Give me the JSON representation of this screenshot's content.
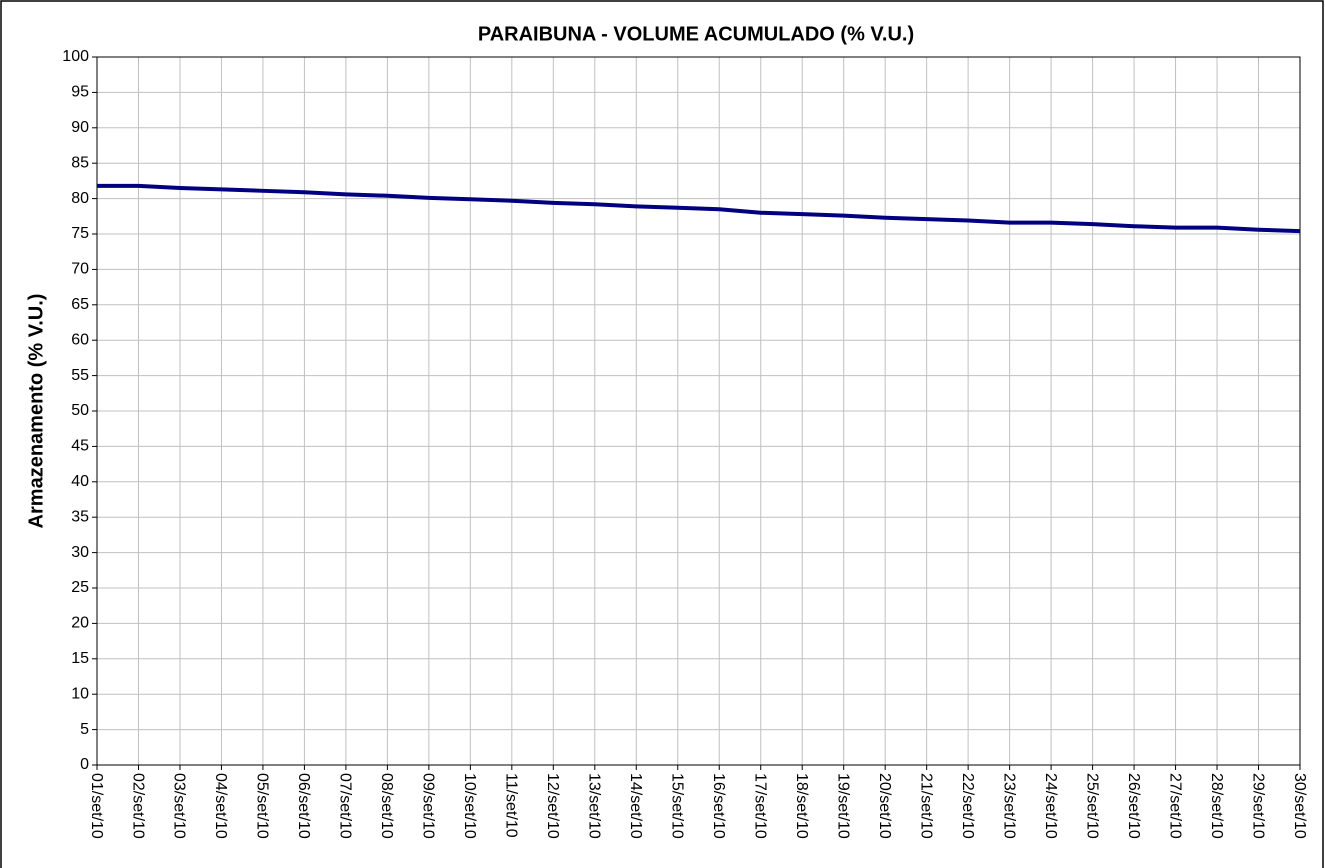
{
  "chart_data": {
    "type": "line",
    "title": "PARAIBUNA - VOLUME ACUMULADO (% V.U.)",
    "ylabel": "Armazenamento (% V.U.)",
    "categories": [
      "01/set/10",
      "02/set/10",
      "03/set/10",
      "04/set/10",
      "05/set/10",
      "06/set/10",
      "07/set/10",
      "08/set/10",
      "09/set/10",
      "10/set/10",
      "11/set/10",
      "12/set/10",
      "13/set/10",
      "14/set/10",
      "15/set/10",
      "16/set/10",
      "17/set/10",
      "18/set/10",
      "19/set/10",
      "20/set/10",
      "21/set/10",
      "22/set/10",
      "23/set/10",
      "24/set/10",
      "25/set/10",
      "26/set/10",
      "27/set/10",
      "28/set/10",
      "29/set/10",
      "30/set/10"
    ],
    "series": [
      {
        "color": "#000080",
        "values": [
          81.8,
          81.8,
          81.5,
          81.3,
          81.1,
          80.9,
          80.6,
          80.4,
          80.1,
          79.9,
          79.7,
          79.4,
          79.2,
          78.9,
          78.7,
          78.5,
          78.0,
          77.8,
          77.6,
          77.3,
          77.1,
          76.9,
          76.6,
          76.6,
          76.4,
          76.1,
          75.9,
          75.9,
          75.6,
          75.4
        ]
      }
    ],
    "ylim": [
      0,
      100
    ],
    "yticks": [
      0,
      5,
      10,
      15,
      20,
      25,
      30,
      35,
      40,
      45,
      50,
      55,
      60,
      65,
      70,
      75,
      80,
      85,
      90,
      95,
      100
    ],
    "grid": true
  }
}
